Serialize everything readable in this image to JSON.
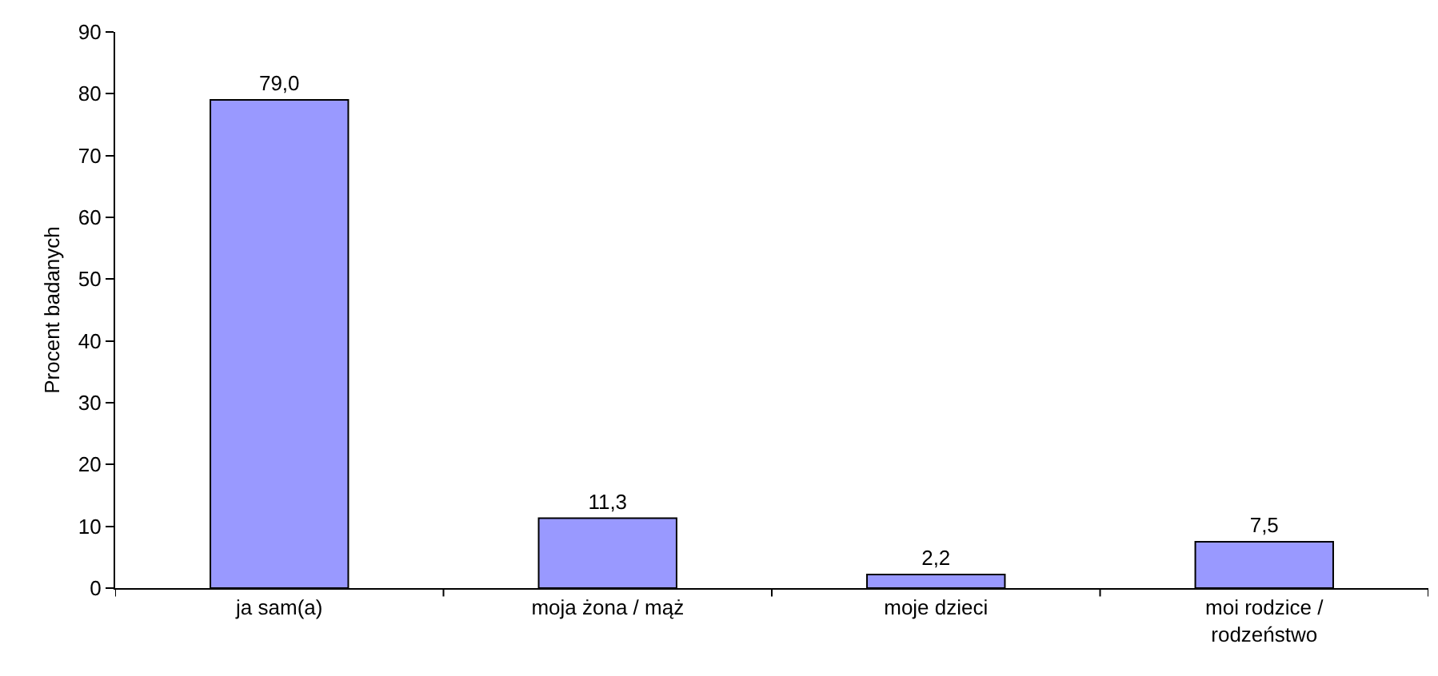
{
  "chart_data": {
    "type": "bar",
    "ylabel": "Procent badanych",
    "categories": [
      "ja sam(a)",
      "moja żona / mąż",
      "moje dzieci",
      "moi rodzice / rodzeństwo"
    ],
    "values": [
      79.0,
      11.3,
      2.2,
      7.5
    ],
    "value_labels": [
      "79,0",
      "11,3",
      "2,2",
      "7,5"
    ],
    "color": "#9999ff",
    "ylim": [
      0,
      90
    ],
    "yticks": [
      0,
      10,
      20,
      30,
      40,
      50,
      60,
      70,
      80,
      90
    ],
    "grid": false
  }
}
